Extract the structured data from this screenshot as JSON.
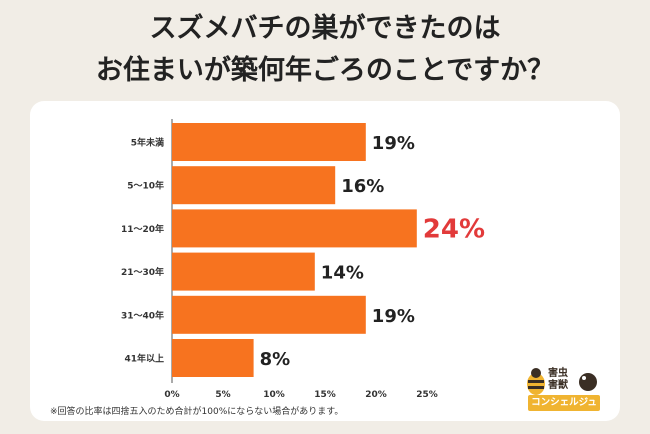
{
  "title": {
    "line1": "スズメバチの巣ができたのは",
    "line2": "お住まいが築何年ごろのことですか？"
  },
  "note": "※回答の比率は四捨五入のため合計が100%にならない場合があります。",
  "logo": {
    "top_line1": "害虫",
    "top_line2": "害獣",
    "bottom": "コンシェルジュ"
  },
  "colors": {
    "bar": "#f7731f",
    "highlight_label": "#e23a3a",
    "label": "#222222"
  },
  "chart_data": {
    "type": "bar",
    "orientation": "horizontal",
    "categories": [
      "5年未満",
      "5〜10年",
      "11〜20年",
      "21〜30年",
      "31〜40年",
      "41年以上"
    ],
    "values": [
      19,
      16,
      24,
      14,
      19,
      8
    ],
    "value_labels": [
      "19%",
      "16%",
      "24%",
      "14%",
      "19%",
      "8%"
    ],
    "highlight_index": 2,
    "xlim": [
      0,
      25
    ],
    "xticks": [
      "0%",
      "5%",
      "10%",
      "15%",
      "20%",
      "25%"
    ],
    "xtick_values": [
      0,
      5,
      10,
      15,
      20,
      25
    ],
    "grid": false
  }
}
